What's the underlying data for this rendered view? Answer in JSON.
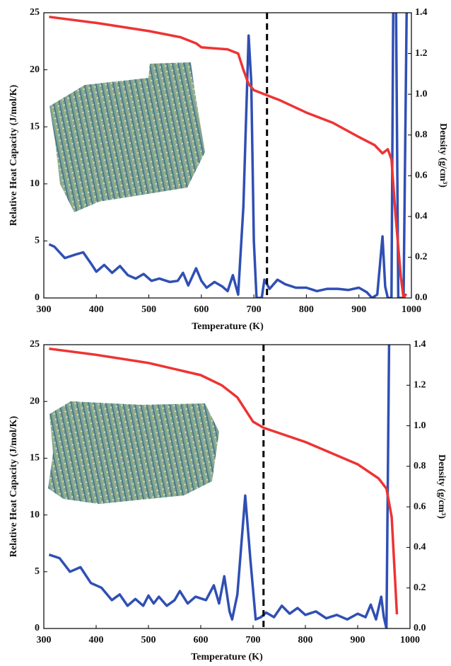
{
  "chart_data": [
    {
      "type": "line",
      "xlabel": "Temperature (K)",
      "ylabel": "Relative Heat Capacity (J/mol/K)",
      "y2label": "Density (g/cm³)",
      "xlim": [
        300,
        1000
      ],
      "xticks": [
        300,
        400,
        500,
        600,
        700,
        800,
        900,
        1000
      ],
      "ylim": [
        0,
        25
      ],
      "yticks": [
        0,
        5,
        10,
        15,
        20,
        25
      ],
      "y2lim": [
        0,
        1.4
      ],
      "y2ticks": [
        {
          "value": 0,
          "label": "0.0"
        },
        0.2,
        0.4,
        0.6,
        0.8,
        {
          "value": 1,
          "label": "1.0"
        },
        1.2,
        1.4
      ],
      "vline": 725,
      "series": [
        {
          "color": "#2f4fb4",
          "axis": "y",
          "x": [
            310,
            320,
            340,
            360,
            375,
            390,
            400,
            415,
            430,
            445,
            460,
            475,
            490,
            505,
            520,
            540,
            555,
            565,
            575,
            590,
            600,
            610,
            625,
            640,
            650,
            660,
            670,
            680,
            690,
            695,
            700,
            705,
            715,
            720,
            730,
            745,
            760,
            780,
            800,
            820,
            840,
            860,
            880,
            900,
            915,
            925,
            935,
            945,
            950,
            955,
            962,
            966,
            970,
            975,
            985,
            992
          ],
          "values": [
            4.7,
            4.5,
            3.5,
            3.8,
            4.0,
            3.0,
            2.3,
            2.9,
            2.2,
            2.8,
            2.0,
            1.7,
            2.1,
            1.5,
            1.7,
            1.4,
            1.5,
            2.2,
            1.1,
            2.6,
            1.5,
            0.9,
            1.4,
            1.0,
            0.6,
            2.0,
            0.3,
            8,
            23,
            19,
            5,
            0,
            0,
            1.6,
            0.8,
            1.6,
            1.2,
            0.9,
            0.9,
            0.6,
            0.8,
            0.8,
            0.7,
            0.9,
            0.5,
            0,
            0.3,
            5.4,
            1,
            0,
            0,
            30,
            30,
            0,
            0,
            30
          ]
        },
        {
          "color": "#ee3333",
          "axis": "y2",
          "x": [
            310,
            400,
            500,
            560,
            590,
            600,
            650,
            670,
            680,
            690,
            700,
            720,
            750,
            800,
            850,
            900,
            930,
            945,
            955,
            962,
            970,
            980,
            985,
            990
          ],
          "values": [
            1.38,
            1.35,
            1.31,
            1.28,
            1.25,
            1.23,
            1.22,
            1.2,
            1.12,
            1.05,
            1.02,
            1.0,
            0.97,
            0.91,
            0.86,
            0.79,
            0.75,
            0.71,
            0.73,
            0.68,
            0.4,
            0.1,
            0.0,
            0.02
          ]
        }
      ]
    },
    {
      "type": "line",
      "xlabel": "Temperature (K)",
      "ylabel": "Relative Heat Capacity (J/mol/K)",
      "y2label": "Density (g/cm³)",
      "xlim": [
        300,
        1000
      ],
      "xticks": [
        300,
        400,
        500,
        600,
        700,
        800,
        900,
        1000
      ],
      "ylim": [
        0,
        25
      ],
      "yticks": [
        0,
        5,
        10,
        15,
        20,
        25
      ],
      "y2lim": [
        0,
        1.4
      ],
      "y2ticks": [
        {
          "value": 0,
          "label": "0.0"
        },
        0.2,
        0.4,
        0.6,
        0.8,
        {
          "value": 1,
          "label": "1.0"
        },
        1.2,
        1.4
      ],
      "vline": 720,
      "series": [
        {
          "color": "#2f4fb4",
          "axis": "y",
          "x": [
            310,
            330,
            350,
            370,
            390,
            410,
            430,
            445,
            460,
            475,
            490,
            500,
            510,
            520,
            535,
            550,
            560,
            575,
            590,
            610,
            625,
            635,
            645,
            655,
            660,
            670,
            685,
            695,
            705,
            715,
            725,
            740,
            755,
            770,
            785,
            800,
            820,
            840,
            860,
            880,
            900,
            915,
            925,
            935,
            945,
            950,
            955,
            960,
            963
          ],
          "values": [
            6.5,
            6.2,
            5.0,
            5.4,
            4.0,
            3.6,
            2.5,
            3.0,
            2.0,
            2.6,
            2.0,
            2.9,
            2.2,
            2.8,
            2.0,
            2.5,
            3.3,
            2.2,
            2.8,
            2.5,
            3.8,
            2.2,
            4.6,
            1.5,
            0.8,
            3,
            11.7,
            6,
            0.8,
            1.0,
            1.4,
            1.0,
            2.0,
            1.3,
            1.8,
            1.2,
            1.5,
            0.9,
            1.2,
            0.8,
            1.3,
            1.0,
            2.1,
            0.8,
            2.8,
            1,
            0,
            25,
            30
          ]
        },
        {
          "color": "#ee3333",
          "axis": "y2",
          "x": [
            310,
            400,
            500,
            600,
            640,
            670,
            690,
            700,
            720,
            800,
            900,
            940,
            955,
            965,
            975
          ],
          "values": [
            1.38,
            1.35,
            1.31,
            1.25,
            1.2,
            1.14,
            1.06,
            1.02,
            0.99,
            0.92,
            0.81,
            0.74,
            0.69,
            0.55,
            0.07
          ]
        }
      ]
    }
  ]
}
